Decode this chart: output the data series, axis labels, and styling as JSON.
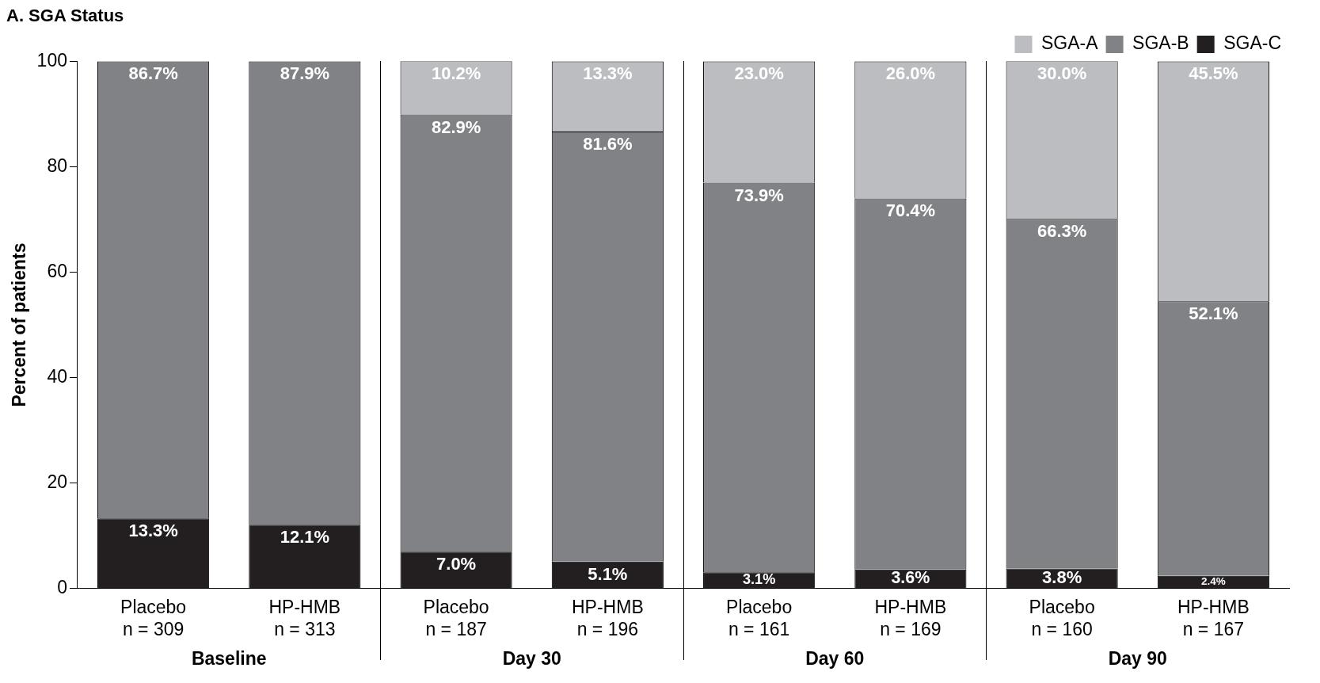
{
  "chart_data": {
    "type": "bar",
    "title": "A. SGA Status",
    "ylabel": "Percent of patients",
    "categories": [
      "Placebo\nn = 309",
      "HP-HMB\nn = 313",
      "Placebo\nn = 187",
      "HP-HMB\nn = 196",
      "Placebo\nn = 161",
      "HP-HMB\nn = 169",
      "Placebo\nn = 160",
      "HP-HMB\nn = 167"
    ],
    "stacked": true,
    "ylim": [
      0,
      100
    ],
    "yticks": [
      0,
      20,
      40,
      60,
      80,
      100
    ],
    "grid": false,
    "legend": "top right",
    "annotations": [
      "Baseline",
      "Day 30",
      "Day 60",
      "Day 90"
    ],
    "series": [
      {
        "name": "SGA-C",
        "color": "#231f20",
        "values": [
          13.3,
          12.1,
          7.0,
          5.1,
          3.1,
          3.6,
          3.8,
          2.4
        ],
        "value_labels": [
          "13.3%",
          "12.1%",
          "7.0%",
          "5.1%",
          "3.1%",
          "3.6%",
          "3.8%",
          "2.4%"
        ]
      },
      {
        "name": "SGA-B",
        "color": "#808285",
        "values": [
          86.7,
          87.9,
          82.9,
          81.6,
          73.9,
          70.4,
          66.3,
          52.1
        ],
        "value_labels": [
          "86.7%",
          "87.9%",
          "82.9%",
          "81.6%",
          "73.9%",
          "70.4%",
          "66.3%",
          "52.1%"
        ]
      },
      {
        "name": "SGA-A",
        "color": "#bcbdc0",
        "values": [
          0,
          0,
          10.2,
          13.3,
          23.0,
          26.0,
          30.0,
          45.5
        ],
        "value_labels": [
          null,
          null,
          "10.2%",
          "13.3%",
          "23.0%",
          "26.0%",
          "30.0%",
          "45.5%"
        ]
      }
    ]
  }
}
